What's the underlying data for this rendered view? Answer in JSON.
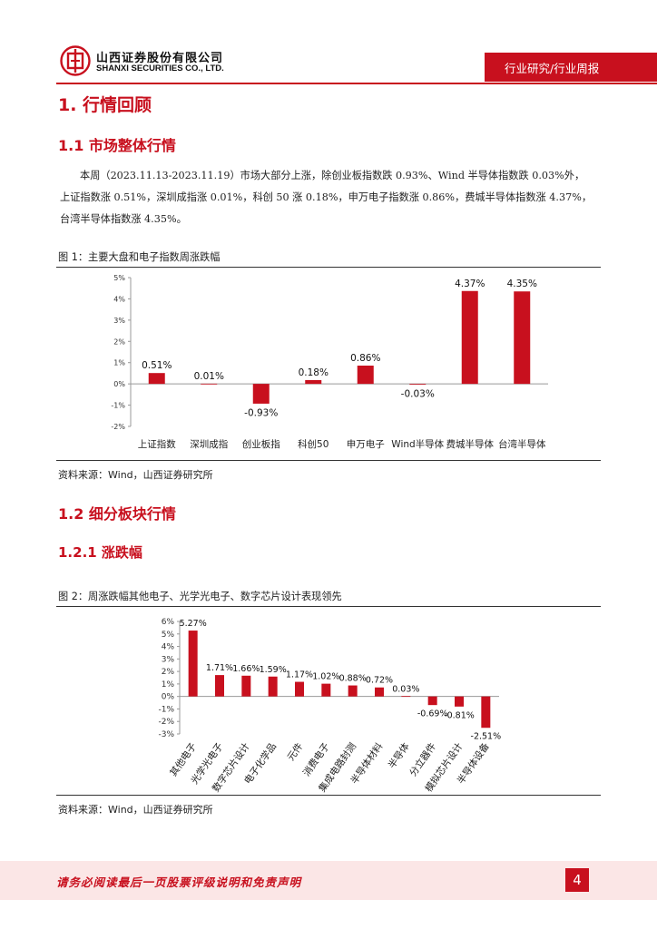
{
  "header": {
    "company_cn": "山西证券股份有限公司",
    "company_en": "SHANXI SECURITIES CO., LTD.",
    "report_type": "行业研究/行业周报",
    "logo_icon": "company-logo-icon"
  },
  "section1": {
    "title": "1.  行情回顾"
  },
  "section1_1": {
    "title": "1.1  市场整体行情"
  },
  "paragraph": {
    "lines": [
      "本周（2023.11.13-2023.11.19）市场大部分上涨，除创业板指数跌 0.93%、Wind 半导体指数跌 0.03%外，",
      "上证指数涨 0.51%，深圳成指涨 0.01%，科创 50 涨 0.18%，申万电子指数涨 0.86%，费城半导体指数涨 4.37%，",
      "台湾半导体指数涨 4.35%。"
    ]
  },
  "figure1": {
    "title": "图 1：主要大盘和电子指数周涨跌幅",
    "source": "资料来源：Wind，山西证券研究所"
  },
  "section1_2": {
    "title": "1.2  细分板块行情"
  },
  "section1_2_1": {
    "title": "1.2.1  涨跌幅"
  },
  "figure2": {
    "title": "图 2：周涨跌幅其他电子、光学光电子、数字芯片设计表现领先",
    "source": "资料来源：Wind，山西证券研究所"
  },
  "footer": {
    "disclaimer": "请务必阅读最后一页股票评级说明和免责声明",
    "page_number": "4"
  },
  "colors": {
    "accent": "#c8101e",
    "bar": "#c8101e",
    "footer_bg": "#fbe6e6"
  },
  "chart_data": [
    {
      "type": "bar",
      "title": "",
      "xlabel": "",
      "ylabel": "",
      "categories": [
        "上证指数",
        "深圳成指",
        "创业板指",
        "科创50",
        "申万电子",
        "Wind半导体",
        "费城半导体",
        "台湾半导体"
      ],
      "values": [
        0.51,
        0.01,
        -0.93,
        0.18,
        0.86,
        -0.03,
        4.37,
        4.35
      ],
      "data_labels": [
        "0.51%",
        "0.01%",
        "-0.93%",
        "0.18%",
        "0.86%",
        "-0.03%",
        "4.37%",
        "4.35%"
      ],
      "ylim": [
        -2,
        5
      ],
      "yticks": [
        5,
        4,
        3,
        2,
        1,
        0,
        -1,
        -2
      ],
      "ytick_labels": [
        "5%",
        "4%",
        "3%",
        "2%",
        "1%",
        "0%",
        "-1%",
        "-2%"
      ],
      "grid": false,
      "legend": "none"
    },
    {
      "type": "bar",
      "title": "",
      "xlabel": "",
      "ylabel": "",
      "categories": [
        "其他电子",
        "光学光电子",
        "数字芯片设计",
        "电子化学品",
        "元件",
        "消费电子",
        "集成电路封测",
        "半导体材料",
        "半导体",
        "分立器件",
        "模拟芯片设计",
        "半导体设备"
      ],
      "values": [
        5.27,
        1.71,
        1.66,
        1.59,
        1.17,
        1.02,
        0.88,
        0.72,
        0.03,
        -0.69,
        -0.81,
        -2.51
      ],
      "data_labels": [
        "5.27%",
        "1.71%",
        "1.66%",
        "1.59%",
        "1.17%",
        "1.02%",
        "0.88%",
        "0.72%",
        "0.03%",
        "-0.69%",
        "-0.81%",
        "-2.51%"
      ],
      "ylim": [
        -3,
        6
      ],
      "yticks": [
        6,
        5,
        4,
        3,
        2,
        1,
        0,
        -1,
        -2,
        -3
      ],
      "ytick_labels": [
        "6%",
        "5%",
        "4%",
        "3%",
        "2%",
        "1%",
        "0%",
        "-1%",
        "-2%",
        "-3%"
      ],
      "grid": false,
      "legend": "none"
    }
  ]
}
